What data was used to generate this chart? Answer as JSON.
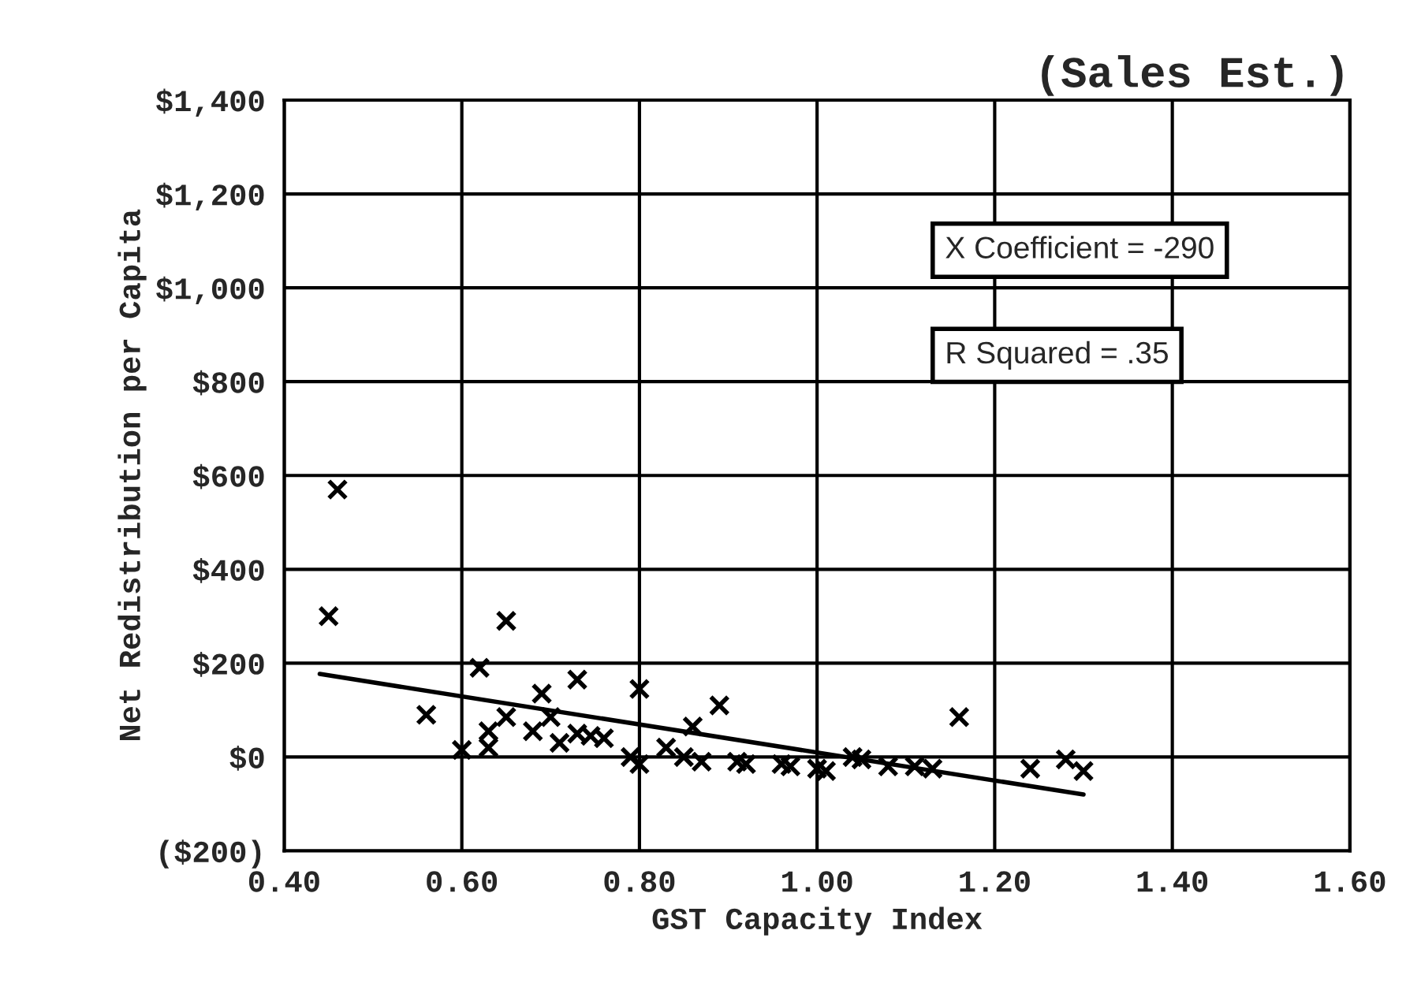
{
  "chart_data": {
    "type": "scatter",
    "title": "(Sales Est.)",
    "xlabel": "GST Capacity Index",
    "ylabel": "Net Redistribution per Capita",
    "annotations": [
      "X Coefficient = -290",
      "R Squared = .35"
    ],
    "xlim": [
      0.4,
      1.6
    ],
    "ylim": [
      -200,
      1400
    ],
    "xticks": [
      {
        "value": 0.4,
        "label": "0.40"
      },
      {
        "value": 0.6,
        "label": "0.60"
      },
      {
        "value": 0.8,
        "label": "0.80"
      },
      {
        "value": 1.0,
        "label": "1.00"
      },
      {
        "value": 1.2,
        "label": "1.20"
      },
      {
        "value": 1.4,
        "label": "1.40"
      },
      {
        "value": 1.6,
        "label": "1.60"
      }
    ],
    "yticks": [
      {
        "value": -200,
        "label": "($200)"
      },
      {
        "value": 0,
        "label": "$0"
      },
      {
        "value": 200,
        "label": "$200"
      },
      {
        "value": 400,
        "label": "$400"
      },
      {
        "value": 600,
        "label": "$600"
      },
      {
        "value": 800,
        "label": "$800"
      },
      {
        "value": 1000,
        "label": "$1,000"
      },
      {
        "value": 1200,
        "label": "$1,200"
      },
      {
        "value": 1400,
        "label": "$1,400"
      }
    ],
    "grid": true,
    "legend": false,
    "marker": "cross",
    "series": [
      {
        "color": "#000000",
        "x": [
          0.46,
          0.45,
          0.65,
          0.62,
          0.56,
          0.69,
          0.73,
          0.8,
          0.89,
          0.86,
          0.65,
          0.63,
          0.6,
          0.63,
          0.68,
          0.7,
          0.71,
          0.73,
          0.745,
          0.76,
          0.79,
          0.8,
          0.83,
          0.85,
          0.87,
          0.91,
          0.92,
          0.96,
          0.97,
          1.0,
          1.04,
          1.16,
          1.05,
          1.01,
          1.08,
          1.11,
          1.13,
          1.24,
          1.28,
          1.3
        ],
        "values": [
          570,
          300,
          290,
          190,
          90,
          135,
          165,
          145,
          110,
          65,
          85,
          55,
          15,
          20,
          55,
          85,
          30,
          50,
          45,
          40,
          0,
          -15,
          20,
          0,
          -10,
          -10,
          -15,
          -15,
          -20,
          -25,
          0,
          85,
          -5,
          -30,
          -20,
          -20,
          -25,
          -25,
          -5,
          -30
        ]
      },
      {
        "type": "line",
        "color": "#000000",
        "marker": "none",
        "x": [
          0.44,
          1.3
        ],
        "values": [
          177,
          -80
        ]
      }
    ]
  }
}
